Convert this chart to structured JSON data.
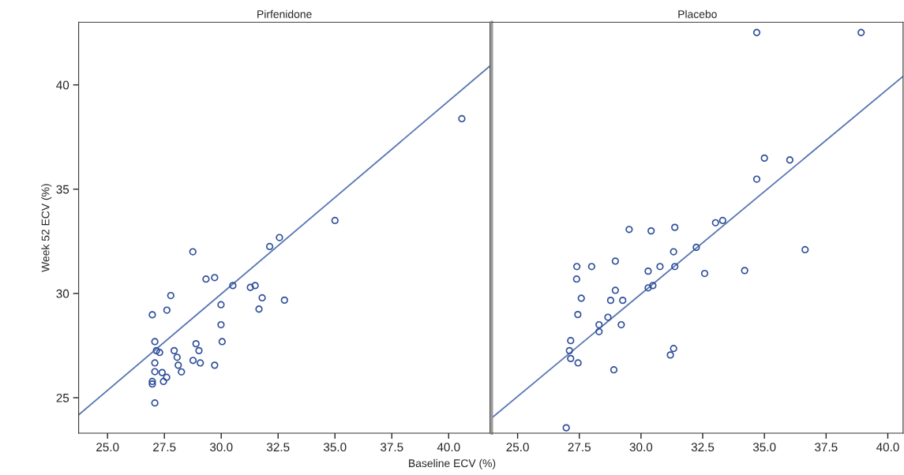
{
  "chart_data": [
    {
      "type": "scatter",
      "title": "Pirfenidone",
      "xlabel": "Baseline ECV (%)",
      "ylabel": "Week 52 ECV (%)",
      "xlim": [
        23.73,
        41.82
      ],
      "ylim": [
        23.3,
        43.0
      ],
      "xticks": [
        {
          "value": 25,
          "label": "25.0"
        },
        {
          "value": 27.5,
          "label": "27.5"
        },
        {
          "value": 30,
          "label": "30.0"
        },
        {
          "value": 32.5,
          "label": "32.5"
        },
        {
          "value": 35,
          "label": "35.0"
        },
        {
          "value": 37.5,
          "label": "37.5"
        },
        {
          "value": 40,
          "label": "40.0"
        }
      ],
      "yticks": [
        25,
        30,
        35,
        40
      ],
      "grid": false,
      "legend": false,
      "series": [
        {
          "type": "scatter",
          "marker": "circle",
          "color": "#2f4f9a",
          "x": [
            28.75,
            29.33,
            29.71,
            30.51,
            31.28,
            31.49,
            32.13,
            32.56,
            31.8,
            32.78,
            31.66,
            27.78,
            27.61,
            26.97,
            29.99,
            29.99,
            30.04,
            27.08,
            27.15,
            27.29,
            27.08,
            27.08,
            27.4,
            27.6,
            27.46,
            26.97,
            26.97,
            27.08,
            27.93,
            28.06,
            28.11,
            28.25,
            28.89,
            29.02,
            28.76,
            29.08,
            29.71,
            35.0,
            40.58
          ],
          "values": [
            32.0,
            30.69,
            30.76,
            30.38,
            30.29,
            30.38,
            32.25,
            32.68,
            29.79,
            29.68,
            29.25,
            29.9,
            29.2,
            28.98,
            29.46,
            28.5,
            27.69,
            27.69,
            27.26,
            27.17,
            26.67,
            26.25,
            26.21,
            25.98,
            25.78,
            25.78,
            25.66,
            24.75,
            27.26,
            26.94,
            26.56,
            26.24,
            27.59,
            27.26,
            26.79,
            26.67,
            26.56,
            33.5,
            38.38
          ]
        },
        {
          "type": "line",
          "color": "#5a78b4",
          "line_style": "solid",
          "x": [
            23.73,
            41.82
          ],
          "values": [
            24.18,
            40.91
          ]
        }
      ]
    },
    {
      "type": "scatter",
      "title": "Placebo",
      "xlim": [
        23.95,
        40.62
      ],
      "ylim": [
        23.3,
        43.0
      ],
      "xticks": [
        {
          "value": 25,
          "label": "25.0"
        },
        {
          "value": 27.5,
          "label": "27.5"
        },
        {
          "value": 30,
          "label": "30.0"
        },
        {
          "value": 32.5,
          "label": "32.5"
        },
        {
          "value": 35,
          "label": "35.0"
        },
        {
          "value": 37.5,
          "label": "37.5"
        },
        {
          "value": 40,
          "label": "40.0"
        }
      ],
      "yticks": [
        25,
        30,
        35,
        40
      ],
      "tick_labels": "x",
      "grid": false,
      "legend": false,
      "series": [
        {
          "type": "scatter",
          "marker": "circle",
          "color": "#2f4f9a",
          "x": [
            29.52,
            30.41,
            31.37,
            31.32,
            32.24,
            27.4,
            28.0,
            28.96,
            30.29,
            30.77,
            31.37,
            32.58,
            27.39,
            28.96,
            30.29,
            30.48,
            27.58,
            28.77,
            29.26,
            27.44,
            28.66,
            28.3,
            29.2,
            28.3,
            27.15,
            27.1,
            27.15,
            27.45,
            31.32,
            31.19,
            28.9,
            26.97,
            34.69,
            38.92,
            35.0,
            36.03,
            34.69,
            33.02,
            33.31,
            34.2,
            36.65
          ],
          "values": [
            33.07,
            33.0,
            33.17,
            32.0,
            32.21,
            31.29,
            31.29,
            31.55,
            31.07,
            31.29,
            31.29,
            30.96,
            30.69,
            30.15,
            30.27,
            30.38,
            29.77,
            29.67,
            29.67,
            28.99,
            28.86,
            28.5,
            28.5,
            28.17,
            27.74,
            27.26,
            26.88,
            26.67,
            27.36,
            27.05,
            26.34,
            23.56,
            42.51,
            42.51,
            36.49,
            36.4,
            35.48,
            33.39,
            33.5,
            31.1,
            32.1
          ]
        },
        {
          "type": "line",
          "color": "#5a78b4",
          "line_style": "solid",
          "x": [
            23.95,
            40.62
          ],
          "values": [
            24.03,
            40.41
          ]
        }
      ]
    }
  ]
}
